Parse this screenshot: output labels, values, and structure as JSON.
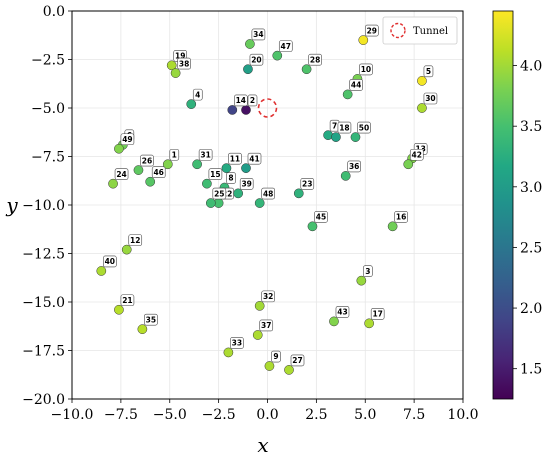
{
  "chart_data": {
    "type": "scatter",
    "xlabel": "x",
    "ylabel": "y",
    "xlim": [
      -10,
      10
    ],
    "ylim": [
      -20,
      0
    ],
    "xticks": [
      "−10.0",
      "−7.5",
      "−5.0",
      "−2.5",
      "0.0",
      "2.5",
      "5.0",
      "7.5",
      "10.0"
    ],
    "yticks": [
      "0.0",
      "−2.5",
      "−5.0",
      "−7.5",
      "−10.0",
      "−12.5",
      "−15.0",
      "−17.5",
      "−20.0"
    ],
    "grid": true,
    "legend": {
      "placement": "top-right",
      "label": "Tunnel",
      "marker": "dashed-circle",
      "color": "#e03030"
    },
    "tunnel": {
      "x": 0.0,
      "y": -5.0
    },
    "colorbar": {
      "colormap": "viridis",
      "range": [
        1.25,
        4.45
      ],
      "ticks": [
        "1.5",
        "2.0",
        "2.5",
        "3.0",
        "3.5",
        "4.0"
      ]
    },
    "points": [
      {
        "id": "1",
        "x": -5.1,
        "y": -7.9,
        "value": 3.85
      },
      {
        "id": "2",
        "x": -1.1,
        "y": -5.1,
        "value": 1.4
      },
      {
        "id": "3",
        "x": 4.8,
        "y": -13.9,
        "value": 3.95
      },
      {
        "id": "4",
        "x": -3.9,
        "y": -4.8,
        "value": 3.3
      },
      {
        "id": "5",
        "x": 7.9,
        "y": -3.6,
        "value": 4.4
      },
      {
        "id": "6",
        "x": -7.4,
        "y": -6.9,
        "value": 3.75
      },
      {
        "id": "7",
        "x": 3.1,
        "y": -6.4,
        "value": 3.2
      },
      {
        "id": "8",
        "x": -2.2,
        "y": -9.1,
        "value": 3.4
      },
      {
        "id": "9",
        "x": 0.1,
        "y": -18.3,
        "value": 4.05
      },
      {
        "id": "10",
        "x": 4.6,
        "y": -3.5,
        "value": 3.8
      },
      {
        "id": "11",
        "x": -2.1,
        "y": -8.1,
        "value": 3.2
      },
      {
        "id": "12",
        "x": -7.2,
        "y": -12.3,
        "value": 3.95
      },
      {
        "id": "13",
        "x": 7.4,
        "y": -7.6,
        "value": 3.85
      },
      {
        "id": "14",
        "x": -1.8,
        "y": -5.1,
        "value": 1.9
      },
      {
        "id": "15",
        "x": -3.1,
        "y": -8.9,
        "value": 3.45
      },
      {
        "id": "16",
        "x": 6.4,
        "y": -11.1,
        "value": 3.75
      },
      {
        "id": "17",
        "x": 5.2,
        "y": -16.1,
        "value": 4.05
      },
      {
        "id": "18",
        "x": 3.5,
        "y": -6.5,
        "value": 3.1
      },
      {
        "id": "19",
        "x": -4.9,
        "y": -2.8,
        "value": 4.05
      },
      {
        "id": "20",
        "x": -1.0,
        "y": -3.0,
        "value": 3.05
      },
      {
        "id": "21",
        "x": -7.6,
        "y": -15.4,
        "value": 4.1
      },
      {
        "id": "22",
        "x": -2.5,
        "y": -9.9,
        "value": 3.5
      },
      {
        "id": "23",
        "x": 1.6,
        "y": -9.4,
        "value": 3.3
      },
      {
        "id": "24",
        "x": -7.9,
        "y": -8.9,
        "value": 3.9
      },
      {
        "id": "25",
        "x": -2.9,
        "y": -9.9,
        "value": 3.45
      },
      {
        "id": "26",
        "x": -6.6,
        "y": -8.2,
        "value": 3.65
      },
      {
        "id": "27",
        "x": 1.1,
        "y": -18.5,
        "value": 4.05
      },
      {
        "id": "28",
        "x": 2.0,
        "y": -3.0,
        "value": 3.55
      },
      {
        "id": "29",
        "x": 4.9,
        "y": -1.5,
        "value": 4.4
      },
      {
        "id": "30",
        "x": 7.9,
        "y": -5.0,
        "value": 4.05
      },
      {
        "id": "31",
        "x": -3.6,
        "y": -7.9,
        "value": 3.45
      },
      {
        "id": "32",
        "x": -0.4,
        "y": -15.2,
        "value": 4.0
      },
      {
        "id": "33",
        "x": -2.0,
        "y": -17.6,
        "value": 4.05
      },
      {
        "id": "34",
        "x": -0.9,
        "y": -1.7,
        "value": 3.7
      },
      {
        "id": "35",
        "x": -6.4,
        "y": -16.4,
        "value": 4.1
      },
      {
        "id": "36",
        "x": 4.0,
        "y": -8.5,
        "value": 3.45
      },
      {
        "id": "37",
        "x": -0.5,
        "y": -16.7,
        "value": 4.05
      },
      {
        "id": "38",
        "x": -4.7,
        "y": -3.2,
        "value": 3.95
      },
      {
        "id": "39",
        "x": -1.5,
        "y": -9.4,
        "value": 3.3
      },
      {
        "id": "40",
        "x": -8.5,
        "y": -13.4,
        "value": 4.05
      },
      {
        "id": "41",
        "x": -1.1,
        "y": -8.1,
        "value": 3.0
      },
      {
        "id": "42",
        "x": 7.2,
        "y": -7.9,
        "value": 3.8
      },
      {
        "id": "43",
        "x": 3.4,
        "y": -16.0,
        "value": 3.85
      },
      {
        "id": "44",
        "x": 4.1,
        "y": -4.3,
        "value": 3.55
      },
      {
        "id": "45",
        "x": 2.3,
        "y": -11.1,
        "value": 3.5
      },
      {
        "id": "46",
        "x": -6.0,
        "y": -8.8,
        "value": 3.6
      },
      {
        "id": "47",
        "x": 0.5,
        "y": -2.3,
        "value": 3.55
      },
      {
        "id": "48",
        "x": -0.4,
        "y": -9.9,
        "value": 3.35
      },
      {
        "id": "49",
        "x": -7.6,
        "y": -7.1,
        "value": 3.85
      },
      {
        "id": "50",
        "x": 4.5,
        "y": -6.5,
        "value": 3.35
      }
    ]
  }
}
